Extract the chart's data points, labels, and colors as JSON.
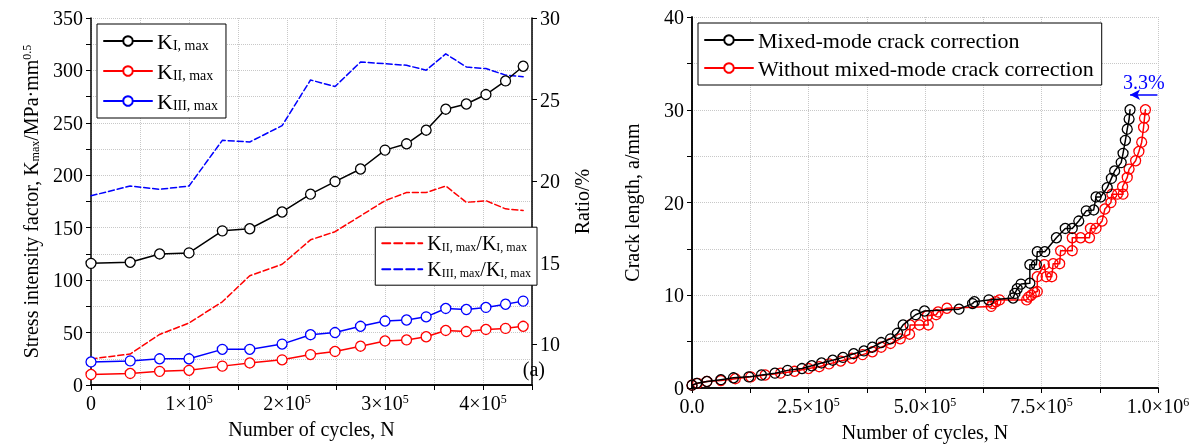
{
  "chart_data": [
    {
      "type": "line",
      "xlabel": "Number of cycles, N",
      "ylabel": "Stress intensity factor, K$_{max}$/MPa·mm$^{0.5}$",
      "y2label": "Ratio/%",
      "x": [
        0,
        40000,
        70000,
        100000,
        134000,
        162000,
        195000,
        224000,
        249000,
        275000,
        300000,
        322000,
        342000,
        362000,
        383000,
        403000,
        423000,
        441000
      ],
      "series": [
        {
          "name": "K$_{I, max}$",
          "color": "#000000",
          "marker": "circle",
          "line_style": "solid",
          "values": [
            116,
            117,
            125,
            126,
            147,
            149,
            165,
            182,
            194,
            206,
            224,
            230,
            243,
            263,
            268,
            277,
            290,
            304
          ]
        },
        {
          "name": "K$_{II, max}$",
          "color": "#ff0000",
          "marker": "circle",
          "line_style": "solid",
          "values": [
            10,
            11,
            13,
            14,
            18,
            21,
            24,
            29,
            32,
            37,
            42,
            43,
            46,
            52,
            51,
            53,
            54,
            56
          ]
        },
        {
          "name": "K$_{III, max}$",
          "color": "#0000ff",
          "marker": "circle",
          "line_style": "solid",
          "values": [
            22,
            23,
            25,
            25,
            34,
            34,
            39,
            48,
            50,
            56,
            61,
            62,
            65,
            73,
            72,
            74,
            77,
            80
          ]
        },
        {
          "name": "K$_{II, max}$/K$_{I, max}$",
          "color": "#ff0000",
          "axis": "y2",
          "marker": "none",
          "line_style": "dashed",
          "values": [
            9.1,
            9.4,
            10.6,
            11.3,
            12.6,
            14.2,
            14.9,
            16.4,
            16.9,
            null,
            18.8,
            19.3,
            19.3,
            19.7,
            18.7,
            18.8,
            18.3,
            18.2
          ]
        },
        {
          "name": "K$_{III, max}$/K$_{I, max}$",
          "color": "#0000ff",
          "axis": "y2",
          "marker": "none",
          "line_style": "dashed",
          "values": [
            19.1,
            19.7,
            19.5,
            19.7,
            22.5,
            22.4,
            23.4,
            26.2,
            25.8,
            27.3,
            27.2,
            27.1,
            26.8,
            27.8,
            27.0,
            26.9,
            26.5,
            26.4
          ]
        }
      ],
      "xlim": [
        0,
        450000
      ],
      "xticks": [
        0,
        {
          "value": 50000,
          "label": null
        },
        {
          "value": 100000,
          "label": "1×10$^{5}$"
        },
        {
          "value": 150000,
          "label": null
        },
        {
          "value": 200000,
          "label": "2×10$^{5}$"
        },
        {
          "value": 250000,
          "label": null
        },
        {
          "value": 300000,
          "label": "3×10$^{5}$"
        },
        {
          "value": 350000,
          "label": null
        },
        {
          "value": 400000,
          "label": "4×10$^{5}$"
        },
        {
          "value": 450000,
          "label": null
        }
      ],
      "ylim": [
        0,
        350
      ],
      "yticks": [
        0,
        {
          "value": 25,
          "label": null
        },
        50,
        {
          "value": 75,
          "label": null
        },
        100,
        {
          "value": 125,
          "label": null
        },
        150,
        {
          "value": 175,
          "label": null
        },
        200,
        {
          "value": 225,
          "label": null
        },
        250,
        {
          "value": 275,
          "label": null
        },
        300,
        {
          "value": 325,
          "label": null
        },
        350
      ],
      "y2lim": [
        7.5,
        30
      ],
      "y2ticks": [
        10,
        15,
        20,
        25,
        30
      ],
      "grid": true,
      "legend": "top left",
      "annotations": [
        "(a)"
      ]
    },
    {
      "type": "line",
      "xlabel": "Number of cycles, N",
      "ylabel": "Crack length, a/mm",
      "series": [
        {
          "name": "Mixed-mode crack correction",
          "color": "#000000",
          "marker": "circle",
          "line_style": "solid",
          "x": [
            0,
            10000,
            32000,
            62000,
            89000,
            122000,
            149000,
            178000,
            205000,
            236000,
            257000,
            278000,
            302000,
            324000,
            347000,
            369000,
            387000,
            406000,
            426000,
            441000,
            453000,
            480000,
            499000,
            573000,
            602000,
            606000,
            637000,
            689000,
            693000,
            698000,
            706000,
            725000,
            725000,
            739000,
            741000,
            757000,
            782000,
            801000,
            816000,
            830000,
            846000,
            862000,
            867000,
            877000,
            891000,
            900000,
            907000,
            921000,
            925000,
            930000,
            934000,
            938000,
            940000
          ],
          "values": [
            0.3,
            0.5,
            0.7,
            0.9,
            1.1,
            1.2,
            1.4,
            1.6,
            1.9,
            2.1,
            2.4,
            2.7,
            3.0,
            3.3,
            3.7,
            4.0,
            4.4,
            4.9,
            5.3,
            5.9,
            6.8,
            7.9,
            8.3,
            8.5,
            9.1,
            9.3,
            9.5,
            9.7,
            10.2,
            10.7,
            11.2,
            11.3,
            13.3,
            13.3,
            14.7,
            14.7,
            16.2,
            17.2,
            17.2,
            18.0,
            19.1,
            19.2,
            20.6,
            20.6,
            21.6,
            22.6,
            23.4,
            24.3,
            25.3,
            26.7,
            27.9,
            29.0,
            30.0
          ]
        },
        {
          "name": "Without mixed-mode crack correction",
          "color": "#ff0000",
          "marker": "circle",
          "line_style": "solid",
          "x": [
            0,
            12000,
            32000,
            62000,
            93000,
            126000,
            157000,
            190000,
            220000,
            250000,
            273000,
            294000,
            319000,
            343000,
            366000,
            387000,
            406000,
            426000,
            447000,
            467000,
            468000,
            488000,
            507000,
            505000,
            524000,
            528000,
            547000,
            642000,
            645000,
            652000,
            660000,
            718000,
            722000,
            728000,
            735000,
            741000,
            741000,
            756000,
            760000,
            772000,
            775000,
            789000,
            791000,
            816000,
            816000,
            834000,
            853000,
            855000,
            867000,
            880000,
            886000,
            899000,
            901000,
            913000,
            925000,
            924000,
            934000,
            938000,
            952000,
            959000,
            965000,
            969000,
            971000,
            973000
          ],
          "values": [
            0.3,
            0.5,
            0.7,
            0.8,
            1.0,
            1.2,
            1.4,
            1.6,
            1.8,
            2.1,
            2.3,
            2.6,
            2.9,
            3.2,
            3.6,
            3.9,
            4.4,
            4.8,
            5.3,
            5.8,
            6.8,
            6.8,
            6.8,
            7.8,
            7.9,
            8.2,
            8.6,
            8.8,
            9.1,
            9.3,
            9.5,
            9.5,
            9.8,
            10.0,
            10.3,
            10.4,
            12.0,
            13.3,
            12.0,
            12.0,
            13.4,
            13.4,
            14.8,
            14.8,
            16.2,
            16.2,
            16.2,
            17.2,
            17.2,
            18.0,
            19.3,
            20.0,
            20.9,
            20.9,
            20.9,
            21.7,
            22.7,
            23.6,
            24.5,
            25.5,
            26.5,
            28.1,
            29.1,
            30.0
          ]
        }
      ],
      "xlim": [
        0,
        1000000
      ],
      "xticks": [
        {
          "value": 0,
          "label": "0.0"
        },
        {
          "value": 125000,
          "label": null
        },
        {
          "value": 250000,
          "label": "2.5×10$^{5}$"
        },
        {
          "value": 375000,
          "label": null
        },
        {
          "value": 500000,
          "label": "5.0×10$^{5}$"
        },
        {
          "value": 625000,
          "label": null
        },
        {
          "value": 750000,
          "label": "7.5×10$^{5}$"
        },
        {
          "value": 875000,
          "label": null
        },
        {
          "value": 1000000,
          "label": "1.0×10$^{6}$"
        }
      ],
      "ylim": [
        0,
        40
      ],
      "yticks": [
        0,
        {
          "value": 5,
          "label": null
        },
        10,
        {
          "value": 15,
          "label": null
        },
        20,
        {
          "value": 25,
          "label": null
        },
        30,
        {
          "value": 35,
          "label": null
        },
        40
      ],
      "grid": true,
      "legend": "top left",
      "annotations": [
        "3.3%"
      ]
    }
  ]
}
